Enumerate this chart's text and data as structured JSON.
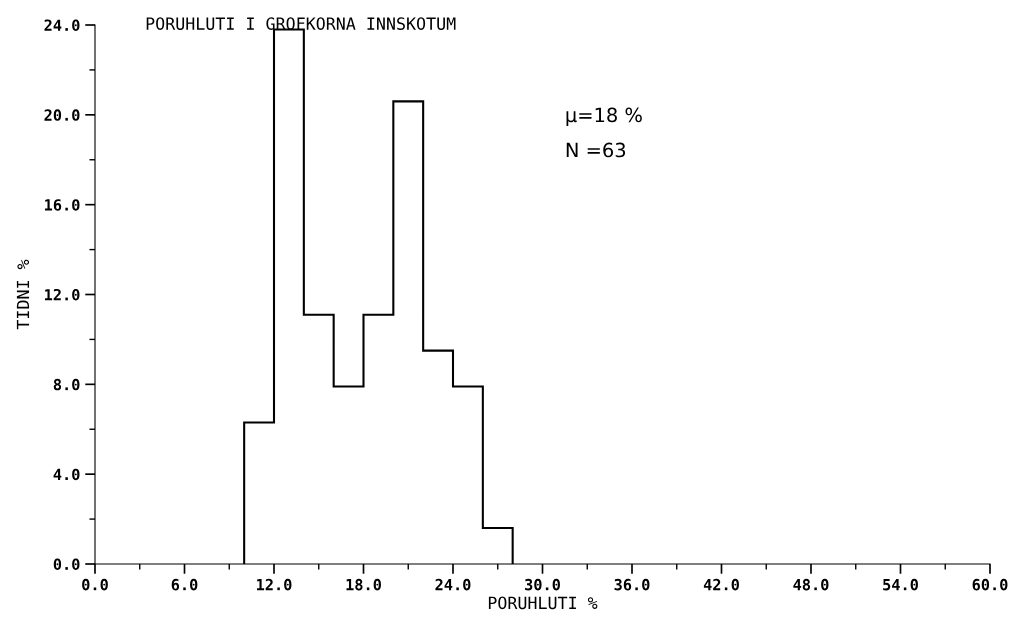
{
  "chart_data": {
    "type": "histogram",
    "title": "PORUHLUTI I GROFKORNA INNSKOTUM",
    "xlabel": "PORUHLUTI %",
    "ylabel": "TIDNI %",
    "annotations": [
      "μ=18 %",
      "N =63"
    ],
    "bins": [
      10,
      12,
      14,
      16,
      18,
      20,
      22,
      24,
      26,
      28
    ],
    "values": [
      6.3,
      23.8,
      11.1,
      7.9,
      11.1,
      20.6,
      9.5,
      7.9,
      1.6
    ],
    "color": "#000000",
    "xlim": [
      0,
      60
    ],
    "ylim": [
      0,
      24
    ],
    "xticks": [
      {
        "value": 0,
        "label": "0.0"
      },
      {
        "value": 6,
        "label": "6.0"
      },
      {
        "value": 12,
        "label": "12.0"
      },
      {
        "value": 18,
        "label": "18.0"
      },
      {
        "value": 24,
        "label": "24.0"
      },
      {
        "value": 30,
        "label": "30.0"
      },
      {
        "value": 36,
        "label": "36.0"
      },
      {
        "value": 42,
        "label": "42.0"
      },
      {
        "value": 48,
        "label": "48.0"
      },
      {
        "value": 54,
        "label": "54.0"
      },
      {
        "value": 60,
        "label": "60.0"
      }
    ],
    "yticks": [
      {
        "value": 0,
        "label": "0.0"
      },
      {
        "value": 4,
        "label": "4.0"
      },
      {
        "value": 8,
        "label": "8.0"
      },
      {
        "value": 12,
        "label": "12.0"
      },
      {
        "value": 16,
        "label": "16.0"
      },
      {
        "value": 20,
        "label": "20.0"
      },
      {
        "value": 24,
        "label": "24.0"
      }
    ],
    "grid": false
  }
}
